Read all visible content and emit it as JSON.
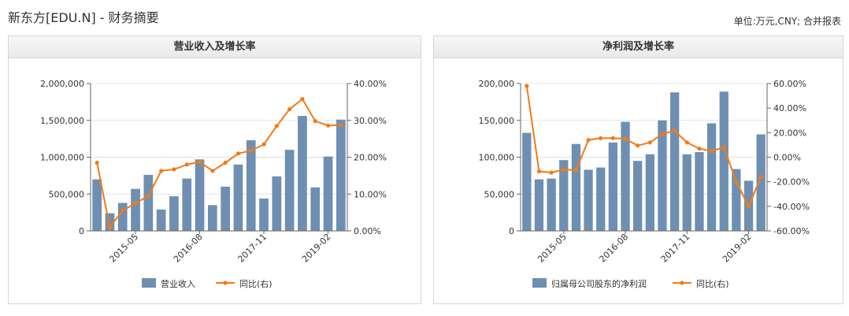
{
  "header": {
    "title": "新东方[EDU.N] - 财务摘要",
    "unit_note": "单位:万元,CNY; 合并报表"
  },
  "colors": {
    "bar": "#6e8fb2",
    "line": "#f07b18",
    "grid": "#e3e3e3",
    "axis": "#666666"
  },
  "chart_data": [
    {
      "type": "bar+line",
      "title": "营业收入及增长率",
      "x_tick_labels": [
        "2015-05",
        "2016-08",
        "2017-11",
        "2019-02"
      ],
      "x_tick_indices": [
        3,
        8,
        13,
        18
      ],
      "series": [
        {
          "name": "营业收入",
          "type": "bar",
          "axis": "left",
          "values": [
            700000,
            240000,
            380000,
            570000,
            760000,
            290000,
            470000,
            710000,
            970000,
            350000,
            600000,
            900000,
            1230000,
            440000,
            740000,
            1100000,
            1560000,
            590000,
            1010000,
            1510000
          ]
        },
        {
          "name": "同比(右)",
          "type": "line",
          "axis": "right",
          "values": [
            18.5,
            1.0,
            5.5,
            7.5,
            9.5,
            16.3,
            16.7,
            18.0,
            18.7,
            16.3,
            18.5,
            21.0,
            21.8,
            23.5,
            28.5,
            33.0,
            35.8,
            29.8,
            28.6,
            28.7
          ]
        }
      ],
      "y_left": {
        "ticks": [
          "0",
          "500,000",
          "1,000,000",
          "1,500,000",
          "2,000,000"
        ],
        "min": 0,
        "max": 2000000
      },
      "y_right": {
        "ticks": [
          "0.00%",
          "10.00%",
          "20.00%",
          "30.00%",
          "40.00%"
        ],
        "min": 0,
        "max": 40
      },
      "legend": [
        "营业收入",
        "同比(右)"
      ]
    },
    {
      "type": "bar+line",
      "title": "净利润及增长率",
      "x_tick_labels": [
        "2015-05",
        "2016-08",
        "2017-11",
        "2019-02"
      ],
      "x_tick_indices": [
        3,
        8,
        13,
        18
      ],
      "series": [
        {
          "name": "归属母公司股东的净利润",
          "type": "bar",
          "axis": "left",
          "values": [
            133000,
            70000,
            71000,
            96000,
            118000,
            83000,
            86000,
            120000,
            148000,
            95000,
            104000,
            150000,
            188000,
            104000,
            107000,
            146000,
            189000,
            84000,
            68000,
            131000
          ]
        },
        {
          "name": "同比(右)",
          "type": "line",
          "axis": "right",
          "values": [
            58.0,
            -11.5,
            -12.5,
            -10.0,
            -10.5,
            14.0,
            15.5,
            15.5,
            15.0,
            9.5,
            12.0,
            19.0,
            21.5,
            12.0,
            7.0,
            5.0,
            8.0,
            -20.0,
            -40.0,
            -16.0
          ]
        }
      ],
      "y_left": {
        "ticks": [
          "0",
          "50,000",
          "100,000",
          "150,000",
          "200,000"
        ],
        "min": 0,
        "max": 200000
      },
      "y_right": {
        "ticks": [
          "-60.00%",
          "-40.00%",
          "-20.00%",
          "0.00%",
          "20.00%",
          "40.00%",
          "60.00%"
        ],
        "min": -60,
        "max": 60
      },
      "legend": [
        "归属母公司股东的净利润",
        "同比(右)"
      ]
    }
  ]
}
